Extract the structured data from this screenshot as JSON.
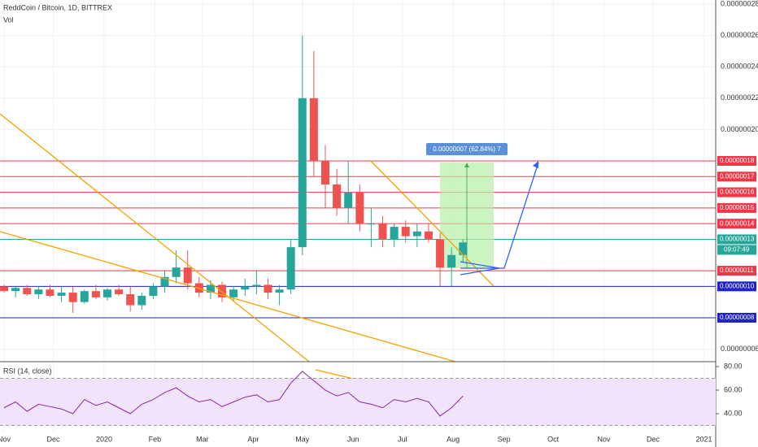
{
  "chart_data": {
    "type": "candlestick",
    "title": "ReddCoin / Bitcoin, 1D, BITTREX",
    "volume_label": "Vol",
    "xlim": [
      -2.5,
      434.2
    ],
    "xticks": [
      {
        "value": 0,
        "label": "Nov"
      },
      {
        "value": 30,
        "label": "Dec"
      },
      {
        "value": 61,
        "label": "2020"
      },
      {
        "value": 92,
        "label": "Feb"
      },
      {
        "value": 121,
        "label": "Mar"
      },
      {
        "value": 152,
        "label": "Apr"
      },
      {
        "value": 182,
        "label": "May"
      },
      {
        "value": 213,
        "label": "Jun"
      },
      {
        "value": 243,
        "label": "Jul"
      },
      {
        "value": 274,
        "label": "Aug"
      },
      {
        "value": 305,
        "label": "Sep"
      },
      {
        "value": 335,
        "label": "Oct"
      },
      {
        "value": 366,
        "label": "Nov"
      },
      {
        "value": 396,
        "label": "Dec"
      },
      {
        "value": 427,
        "label": "2021"
      }
    ],
    "ylim": [
      5.2e-08,
      2.826e-07
    ],
    "yticks": [
      {
        "value": 2.8e-07,
        "label": "0.00000028"
      },
      {
        "value": 2.6e-07,
        "label": "0.00000026"
      },
      {
        "value": 2.4e-07,
        "label": "0.00000024"
      },
      {
        "value": 2.2e-07,
        "label": "0.00000022"
      },
      {
        "value": 2e-07,
        "label": "0.00000020"
      },
      {
        "value": 6e-08,
        "label": "0.00000006"
      }
    ],
    "up_color": "#26a69a",
    "down_color": "#ef5350",
    "x": [
      0,
      7,
      14,
      21,
      28,
      35,
      42,
      49,
      56,
      63,
      70,
      77,
      84,
      91,
      98,
      105,
      112,
      119,
      126,
      133,
      140,
      147,
      154,
      161,
      168,
      175,
      182,
      189,
      196,
      203,
      210,
      217,
      224,
      231,
      238,
      245,
      252,
      259,
      266,
      273,
      280
    ],
    "open": [
      1e-07,
      9.7e-08,
      9.9e-08,
      9.5e-08,
      9.8e-08,
      9.4e-08,
      9.6e-08,
      9e-08,
      9.7e-08,
      9.3e-08,
      9.8e-08,
      9.5e-08,
      8.8e-08,
      9.4e-08,
      1e-07,
      1.06e-07,
      1.12e-07,
      1.02e-07,
      9.6e-08,
      1.01e-07,
      9.3e-08,
      9.8e-08,
      1e-07,
      1.01e-07,
      9.6e-08,
      9.8e-08,
      1.25e-07,
      2.2e-07,
      1.8e-07,
      1.65e-07,
      1.5e-07,
      1.6e-07,
      1.4e-07,
      1.4e-07,
      1.3e-07,
      1.38e-07,
      1.32e-07,
      1.35e-07,
      1.3e-07,
      1.12e-07,
      1.2e-07
    ],
    "high": [
      1.01e-07,
      1e-07,
      1.01e-07,
      1e-07,
      1.01e-07,
      1e-07,
      1e-07,
      9.8e-08,
      1.01e-07,
      9.9e-08,
      1.01e-07,
      1e-07,
      9.6e-08,
      1.02e-07,
      1.1e-07,
      1.23e-07,
      1.23e-07,
      1.06e-07,
      1.04e-07,
      1.03e-07,
      1e-07,
      1.05e-07,
      1.1e-07,
      1.05e-07,
      1.01e-07,
      1.3e-07,
      2.6e-07,
      2.5e-07,
      1.9e-07,
      1.75e-07,
      1.8e-07,
      1.65e-07,
      1.5e-07,
      1.45e-07,
      1.4e-07,
      1.42e-07,
      1.4e-07,
      1.4e-07,
      1.34e-07,
      1.25e-07,
      1.3e-07
    ],
    "low": [
      9.6e-08,
      9.3e-08,
      9.4e-08,
      9.2e-08,
      9.3e-08,
      9e-08,
      8.3e-08,
      8.9e-08,
      9.2e-08,
      9.1e-08,
      9.4e-08,
      8.4e-08,
      8.5e-08,
      9.2e-08,
      9.6e-08,
      1.02e-07,
      9.8e-08,
      9.3e-08,
      9.2e-08,
      9e-08,
      9.1e-08,
      9.4e-08,
      9.5e-08,
      9.2e-08,
      8.8e-08,
      9.5e-08,
      1.2e-07,
      1.7e-07,
      1.5e-07,
      1.45e-07,
      1.4e-07,
      1.35e-07,
      1.25e-07,
      1.25e-07,
      1.25e-07,
      1.28e-07,
      1.25e-07,
      1.28e-07,
      1e-07,
      1e-07,
      1.15e-07
    ],
    "close": [
      9.7e-08,
      9.9e-08,
      9.5e-08,
      9.8e-08,
      9.4e-08,
      9.6e-08,
      9e-08,
      9.7e-08,
      9.3e-08,
      9.8e-08,
      9.5e-08,
      8.8e-08,
      9.4e-08,
      1e-07,
      1.06e-07,
      1.12e-07,
      1.02e-07,
      9.6e-08,
      1.01e-07,
      9.3e-08,
      9.8e-08,
      1e-07,
      1.01e-07,
      9.6e-08,
      9.8e-08,
      1.25e-07,
      2.2e-07,
      1.8e-07,
      1.65e-07,
      1.5e-07,
      1.6e-07,
      1.4e-07,
      1.4e-07,
      1.3e-07,
      1.38e-07,
      1.32e-07,
      1.35e-07,
      1.3e-07,
      1.12e-07,
      1.2e-07,
      1.28e-07
    ],
    "levels": [
      {
        "value": 1.8e-07,
        "label": "0.00000018",
        "color": "#f23645"
      },
      {
        "value": 1.7e-07,
        "label": "0.00000017",
        "color": "#f23645"
      },
      {
        "value": 1.6e-07,
        "label": "0.00000016",
        "color": "#f23645"
      },
      {
        "value": 1.5e-07,
        "label": "0.00000015",
        "color": "#f23645"
      },
      {
        "value": 1.4e-07,
        "label": "0.00000014",
        "color": "#f23645"
      },
      {
        "value": 1.3e-07,
        "label": "0.00000013",
        "color": "#26a69a"
      },
      {
        "value": 1.1e-07,
        "label": "0.00000011",
        "color": "#f23645"
      },
      {
        "value": 1e-07,
        "label": "0.00000010",
        "color": "#1e22c8"
      },
      {
        "value": 8e-08,
        "label": "0.00000008",
        "color": "#1e22c8"
      }
    ],
    "countdown": "09:07:49",
    "measure_label": "0.00000007 (62.84%) 7",
    "rsi": {
      "label": "RSI (14, close)",
      "ylim": [
        25.5,
        82.8
      ],
      "yticks": [
        {
          "value": 80,
          "label": "80.00"
        },
        {
          "value": 60,
          "label": "60.00"
        },
        {
          "value": 40,
          "label": "40.00"
        }
      ],
      "band": [
        30,
        70
      ],
      "color": "#8e24aa",
      "values": [
        45,
        50,
        42,
        48,
        46,
        44,
        40,
        52,
        47,
        50,
        45,
        40,
        48,
        52,
        58,
        62,
        55,
        50,
        52,
        46,
        50,
        54,
        56,
        50,
        52,
        66,
        76,
        68,
        60,
        55,
        58,
        50,
        48,
        45,
        52,
        50,
        53,
        50,
        38,
        45,
        55
      ]
    }
  }
}
